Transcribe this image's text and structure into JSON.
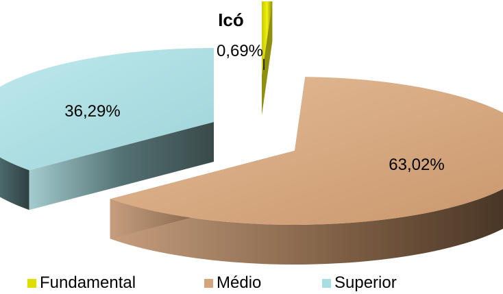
{
  "chart_data": {
    "type": "pie",
    "title": "Icó",
    "categories": [
      "Fundamental",
      "Médio",
      "Superior"
    ],
    "values": [
      0.69,
      63.02,
      36.29
    ],
    "data_labels": [
      "0,69%",
      "63,02%",
      "36,29%"
    ],
    "colors": [
      "#dede00",
      "#d4a57c",
      "#a8dde2"
    ],
    "legend_position": "bottom",
    "style": "3d-exploded"
  }
}
